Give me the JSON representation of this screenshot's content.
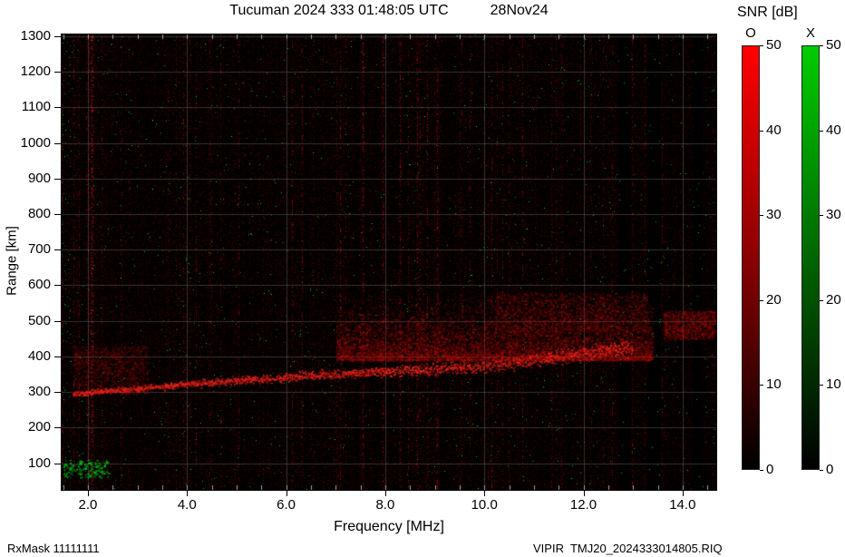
{
  "header": {
    "title_main": "Tucuman 2024 333 01:48:05 UTC",
    "title_date": "28Nov24"
  },
  "footer": {
    "rx_mask": "RxMask 11111111",
    "file": "VIPIR  TMJ20_2024333014805.RIQ"
  },
  "chart_data": {
    "type": "heatmap",
    "subtype": "ionogram",
    "title": "Tucuman 2024 333 01:48:05 UTC   28Nov24",
    "xlabel": "Frequency [MHz]",
    "ylabel": "Range [km]",
    "xlim": [
      1.47,
      14.68
    ],
    "ylim": [
      25,
      1305
    ],
    "xticks": {
      "values": [
        2,
        4,
        6,
        8,
        10,
        12,
        14
      ],
      "labels": [
        "2.0",
        "4.0",
        "6.0",
        "8.0",
        "10.0",
        "12.0",
        "14.0"
      ]
    },
    "xminor_step": 0.5,
    "yticks": [
      100,
      200,
      300,
      400,
      500,
      600,
      700,
      800,
      900,
      1000,
      1100,
      1200,
      1300
    ],
    "grid": true,
    "background_color": "#000000",
    "grid_color": "#969696",
    "colorbar_title": "SNR [dB]",
    "colorbars": [
      {
        "name": "O",
        "color_top": "#ff0000",
        "color_mid": "#8b0000",
        "color_bottom": "#000000",
        "min": 0,
        "max": 50,
        "ticks": [
          0,
          10,
          20,
          30,
          40,
          50
        ]
      },
      {
        "name": "X",
        "color_top": "#00cc00",
        "color_mid": "#006600",
        "color_bottom": "#000000",
        "min": 0,
        "max": 50,
        "ticks": [
          0,
          10,
          20,
          30,
          40,
          50
        ]
      }
    ],
    "echo_trace": {
      "x": [
        1.7,
        2.0,
        2.5,
        3.0,
        3.5,
        4.0,
        4.5,
        5.0,
        5.5,
        6.0,
        6.5,
        7.0,
        7.5,
        8.0,
        8.5,
        9.0,
        9.5,
        10.0,
        10.4,
        10.8,
        11.2,
        11.6,
        12.0,
        12.5,
        13.0
      ],
      "y": [
        295,
        300,
        305,
        311,
        317,
        323,
        328,
        333,
        338,
        343,
        348,
        352,
        356,
        360,
        363,
        366,
        370,
        374,
        379,
        386,
        394,
        402,
        410,
        418,
        428
      ]
    },
    "spread_echo_region": {
      "f": [
        7.0,
        13.4
      ],
      "range": [
        390,
        575
      ]
    },
    "upper_patch": {
      "f": [
        10.2,
        13.3
      ],
      "range": [
        470,
        580
      ]
    },
    "right_patch": {
      "f": [
        13.6,
        14.65
      ],
      "range": [
        450,
        530
      ]
    },
    "left_diffuse_region": {
      "f": [
        1.7,
        3.2
      ],
      "range": [
        295,
        430
      ]
    },
    "green_patch": {
      "f": [
        1.5,
        2.4
      ],
      "range": [
        60,
        110
      ]
    },
    "rfi_lines": [
      {
        "f": 2.07,
        "strength": 0.85
      },
      {
        "f": 7.55,
        "strength": 0.5
      },
      {
        "f": 7.95,
        "strength": 0.45
      },
      {
        "f": 8.3,
        "strength": 0.5
      },
      {
        "f": 8.65,
        "strength": 0.42
      },
      {
        "f": 9.05,
        "strength": 0.45
      },
      {
        "f": 10.15,
        "strength": 0.35
      },
      {
        "f": 11.35,
        "strength": 0.3
      }
    ],
    "dark_bands": [
      [
        12.72,
        12.95
      ],
      [
        13.3,
        13.55
      ],
      [
        14.22,
        14.38
      ]
    ],
    "noise": {
      "seed": 7,
      "red_speckle": 0.55,
      "green_speckle": 0.0035
    }
  }
}
